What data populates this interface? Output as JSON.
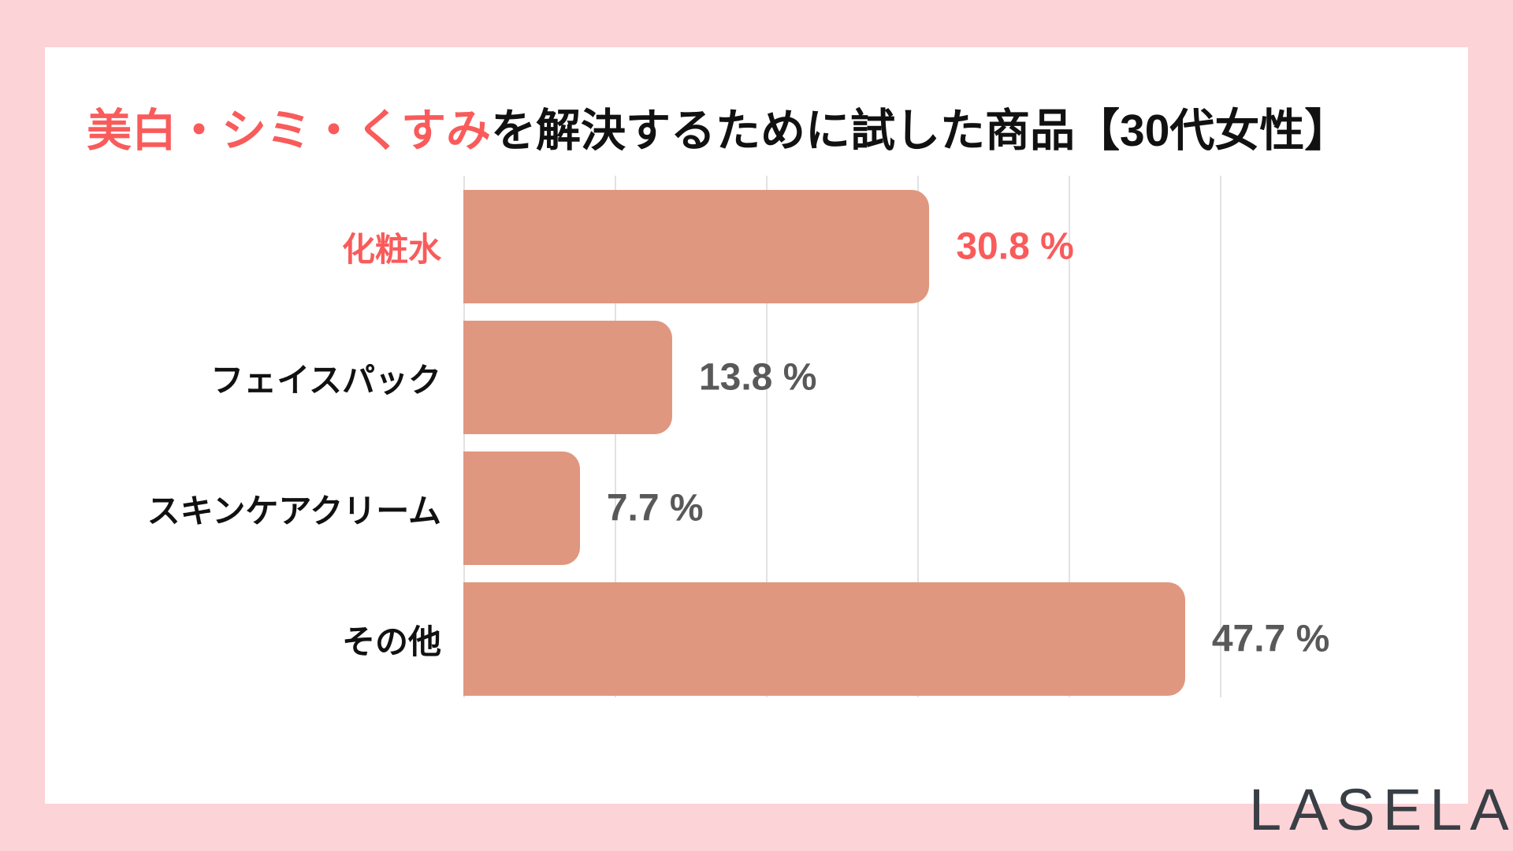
{
  "page": {
    "background_color": "#FCD3D7",
    "card_color": "#FFFFFF"
  },
  "title": {
    "highlight": "美白・シミ・くすみ",
    "rest": "を解決するために試した商品【30代女性】",
    "highlight_color": "#F95B5B",
    "text_color": "#111111"
  },
  "chart_data": {
    "type": "bar",
    "orientation": "horizontal",
    "title": "美白・シミ・くすみを解決するために試した商品【30代女性】",
    "categories": [
      "化粧水",
      "フェイスパック",
      "スキンケアクリーム",
      "その他"
    ],
    "values": [
      30.8,
      13.8,
      7.7,
      47.7
    ],
    "value_labels": [
      "30.8 %",
      "13.8 %",
      "7.7 %",
      "47.7 %"
    ],
    "highlighted_index": 0,
    "xlabel": "",
    "ylabel": "",
    "xlim": [
      0,
      50
    ],
    "gridline_interval_percent": 10,
    "grid": "vertical light-gray lines, behind bars",
    "legend": "none",
    "bar_color": "#E0977F",
    "highlight_text_color": "#F95B5B",
    "value_text_color": "#595959",
    "category_text_color": "#111111",
    "gridline_color": "#E2E2E2"
  },
  "logo": {
    "text": "LASELA",
    "color": "#393F45"
  }
}
